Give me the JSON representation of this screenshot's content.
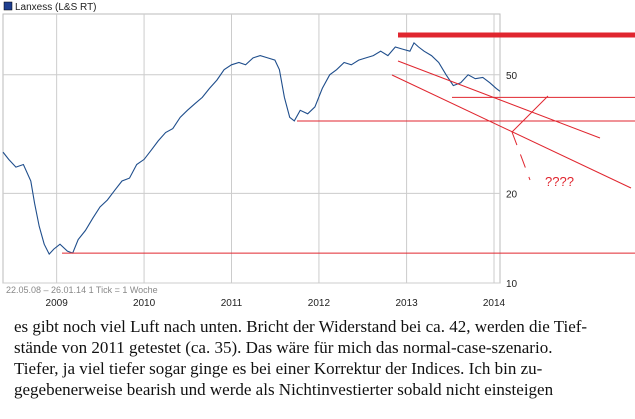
{
  "chart_data": {
    "type": "line",
    "title": "Lanxess (L&S RT)",
    "series_color": "#1f4e8c",
    "legend_color": "#1f3f8f",
    "y_scale": "log",
    "ylim": [
      10,
      80
    ],
    "y_ticks": [
      10,
      20,
      50
    ],
    "y_tick_labels": [
      "10",
      "20",
      "50"
    ],
    "xlim": [
      "2008-05-22",
      "2014-01-26"
    ],
    "x_ticks": [
      "2009",
      "2010",
      "2011",
      "2012",
      "2013",
      "2014"
    ],
    "date_range_label": "22.05.08 – 26.01.14",
    "tick_label": "1 Tick = 1 Woche",
    "series": [
      {
        "x": [
          "2008-05-22",
          "2008-06-15",
          "2008-07-15",
          "2008-08-15",
          "2008-09-15",
          "2008-10-01",
          "2008-10-20",
          "2008-11-10",
          "2008-12-01",
          "2008-12-20",
          "2009-01-15",
          "2009-02-15",
          "2009-03-09",
          "2009-04-01",
          "2009-05-01",
          "2009-06-01",
          "2009-07-01",
          "2009-08-01",
          "2009-09-01",
          "2009-10-01",
          "2009-11-01",
          "2009-12-01",
          "2010-01-01",
          "2010-02-01",
          "2010-03-01",
          "2010-04-01",
          "2010-05-01",
          "2010-06-01",
          "2010-07-01",
          "2010-08-01",
          "2010-09-01",
          "2010-10-01",
          "2010-11-01",
          "2010-12-01",
          "2011-01-01",
          "2011-02-01",
          "2011-03-01",
          "2011-04-01",
          "2011-05-01",
          "2011-06-01",
          "2011-07-01",
          "2011-07-20",
          "2011-08-10",
          "2011-09-01",
          "2011-09-20",
          "2011-10-15",
          "2011-11-15",
          "2011-12-15",
          "2012-01-15",
          "2012-02-15",
          "2012-03-15",
          "2012-04-15",
          "2012-05-15",
          "2012-06-15",
          "2012-07-15",
          "2012-08-15",
          "2012-09-15",
          "2012-10-15",
          "2012-11-15",
          "2012-12-15",
          "2013-01-15",
          "2013-02-01",
          "2013-02-20",
          "2013-03-15",
          "2013-04-15",
          "2013-05-15",
          "2013-06-15",
          "2013-07-15",
          "2013-08-15",
          "2013-09-15",
          "2013-10-15",
          "2013-11-15",
          "2013-12-15",
          "2014-01-10",
          "2014-01-26"
        ],
        "values": [
          27.5,
          26.0,
          24.5,
          25.0,
          22.0,
          18.5,
          15.5,
          13.5,
          12.5,
          13.0,
          13.5,
          12.8,
          12.6,
          14.0,
          15.0,
          16.5,
          18.0,
          19.0,
          20.5,
          22.0,
          22.5,
          25.0,
          26.0,
          28.0,
          30.0,
          32.0,
          33.0,
          36.0,
          38.0,
          40.0,
          42.0,
          45.0,
          48.0,
          52.0,
          54.0,
          55.0,
          54.0,
          57.0,
          58.0,
          57.0,
          56.0,
          52.0,
          42.0,
          36.0,
          35.0,
          38.0,
          37.0,
          39.0,
          45.0,
          50.0,
          52.0,
          55.0,
          54.0,
          56.0,
          57.0,
          58.0,
          60.0,
          58.0,
          62.0,
          61.0,
          60.0,
          64.0,
          62.0,
          60.0,
          58.0,
          55.0,
          50.0,
          46.0,
          47.0,
          50.0,
          48.5,
          49.0,
          47.0,
          45.0,
          44.0
        ]
      }
    ],
    "annotations": {
      "question_text": "????",
      "annotation_color": "#e0262f",
      "resistance_level": 42,
      "support_2011_level": 35,
      "low_2009_level": 12.6,
      "top_bar_level": 68
    }
  },
  "caption": [
    "es gibt noch viel Luft nach unten. Bricht der Widerstand bei ca. 42, werden die Tief-",
    "stände von 2011 getestet (ca. 35). Das wäre für mich das normal-case-szenario.",
    "Tiefer, ja viel tiefer sogar ginge es bei einer Korrektur der Indices. Ich bin zu-",
    "gegebenerweise bearish und werde als Nichtinvestierter sobald nicht einsteigen"
  ]
}
